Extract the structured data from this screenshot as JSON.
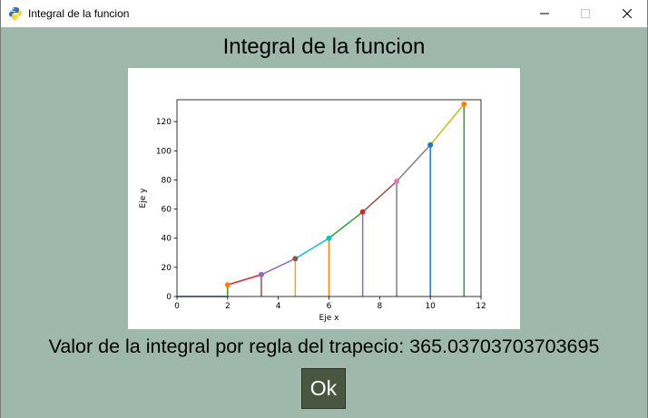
{
  "window": {
    "title": "Integral de la funcion",
    "controls": [
      "minimize",
      "maximize",
      "close"
    ]
  },
  "heading": "Integral de la funcion",
  "chart_data": {
    "type": "line",
    "title": "",
    "xlabel": "Eje x",
    "ylabel": "Eje y",
    "xlim": [
      0,
      12
    ],
    "ylim": [
      0,
      135
    ],
    "xticks": [
      0,
      2,
      4,
      6,
      8,
      10,
      12
    ],
    "yticks": [
      0,
      20,
      40,
      60,
      80,
      100,
      120
    ],
    "grid": false,
    "x": [
      2,
      3.33,
      4.67,
      6,
      7.33,
      8.67,
      10,
      11.33
    ],
    "y": [
      8,
      15,
      26,
      40,
      58,
      79,
      104,
      132
    ],
    "point_colors": [
      "#ff7f0e",
      "#9467bd",
      "#8c564b",
      "#17becf",
      "#d62728",
      "#e377c2",
      "#1f77b4",
      "#ff7f0e"
    ],
    "vertical_line_colors": [
      "#2ca02c",
      "#8c564b",
      "#bcbd22",
      "#ff7f0e",
      "#9467bd",
      "#7f7f7f",
      "#1f77b4",
      "#2ca02c"
    ],
    "segment_colors": [
      "#d62728",
      "#9467bd",
      "#17becf",
      "#2ca02c",
      "#8c564b",
      "#7f7f7f",
      "#bcbd22"
    ]
  },
  "result": {
    "label": "Valor de la integral por regla del trapecio: 365.03703703703695"
  },
  "ok_button": {
    "label": "Ok"
  },
  "colors": {
    "background": "#9eb8ab",
    "button": "#4a5740",
    "button_text": "#ffffff"
  }
}
